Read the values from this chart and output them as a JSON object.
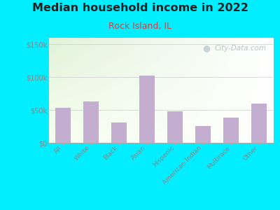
{
  "title": "Median household income in 2022",
  "subtitle": "Rock Island, IL",
  "categories": [
    "All",
    "White",
    "Black",
    "Asian",
    "Hispanic",
    "American Indian",
    "Multirace",
    "Other"
  ],
  "values": [
    53000,
    63000,
    31000,
    102000,
    48000,
    26000,
    38000,
    60000
  ],
  "bar_color": "#c4aed0",
  "background_outer": "#00eeff",
  "title_color": "#222222",
  "subtitle_color": "#cc4444",
  "ylabel_ticks": [
    "$0",
    "$50k",
    "$100k",
    "$150k"
  ],
  "ytick_vals": [
    0,
    50000,
    100000,
    150000
  ],
  "ylim": [
    0,
    160000
  ],
  "watermark": "City-Data.com",
  "title_fontsize": 11.5,
  "subtitle_fontsize": 9,
  "tick_label_color": "#888888"
}
